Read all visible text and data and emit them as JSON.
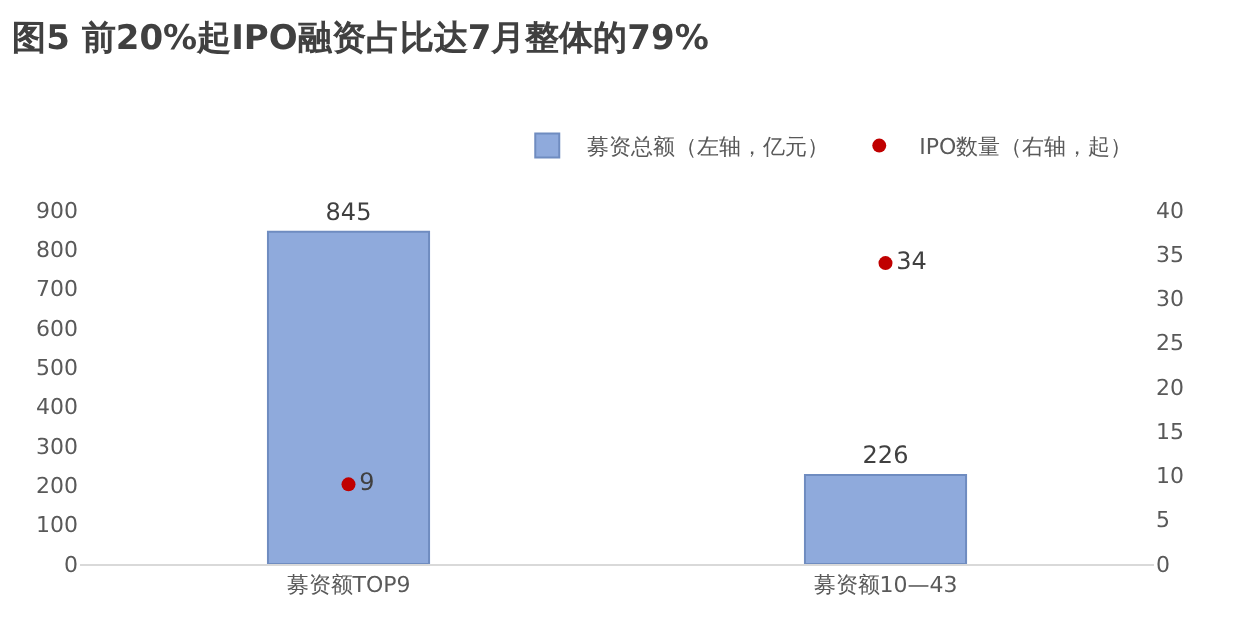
{
  "chart_data": {
    "type": "bar",
    "title": "图5 前20%起IPO融资占比达7月整体的79%",
    "categories": [
      "募资额TOP9",
      "募资额10—43"
    ],
    "series": [
      {
        "name": "募资总额（左轴，亿元）",
        "color": "#8faadc",
        "values": [
          845,
          226
        ]
      },
      {
        "name": "IPO数量（右轴，起）",
        "type": "scatter",
        "axis": "y2",
        "color": "#c00000",
        "values": [
          9,
          34
        ],
        "marker": "circle"
      }
    ],
    "ylim": [
      0,
      900
    ],
    "yticks": [
      0,
      100,
      200,
      300,
      400,
      500,
      600,
      700,
      800,
      900
    ],
    "y2lim": [
      0,
      40
    ],
    "y2ticks": [
      0,
      5,
      10,
      15,
      20,
      25,
      30,
      35,
      40
    ],
    "data_labels": true,
    "grid": false,
    "legend": "top right"
  }
}
